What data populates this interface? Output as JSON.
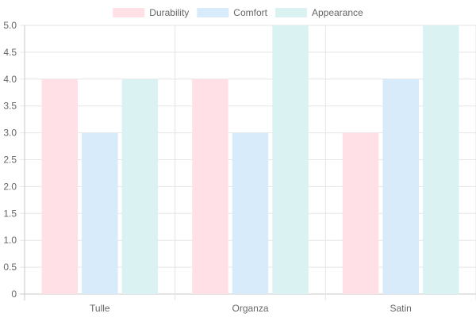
{
  "chart_data": {
    "type": "bar",
    "title": "",
    "xlabel": "",
    "ylabel": "",
    "categories": [
      "Tulle",
      "Organza",
      "Satin"
    ],
    "ylim": [
      0,
      5
    ],
    "ytick_step": 0.5,
    "yticks": [
      "0",
      "0.5",
      "1.0",
      "1.5",
      "2.0",
      "2.5",
      "3.0",
      "3.5",
      "4.0",
      "4.5",
      "5.0"
    ],
    "grid": true,
    "legend_position": "top",
    "series": [
      {
        "name": "Durability",
        "values": [
          4,
          4,
          3
        ],
        "fill": "#ffe0e6",
        "stroke": "#ff6384"
      },
      {
        "name": "Comfort",
        "values": [
          3,
          3,
          4
        ],
        "fill": "#d7ebfa",
        "stroke": "#36a2eb"
      },
      {
        "name": "Appearance",
        "values": [
          4,
          5,
          5
        ],
        "fill": "#dbf2f2",
        "stroke": "#4bc0c0"
      }
    ]
  }
}
